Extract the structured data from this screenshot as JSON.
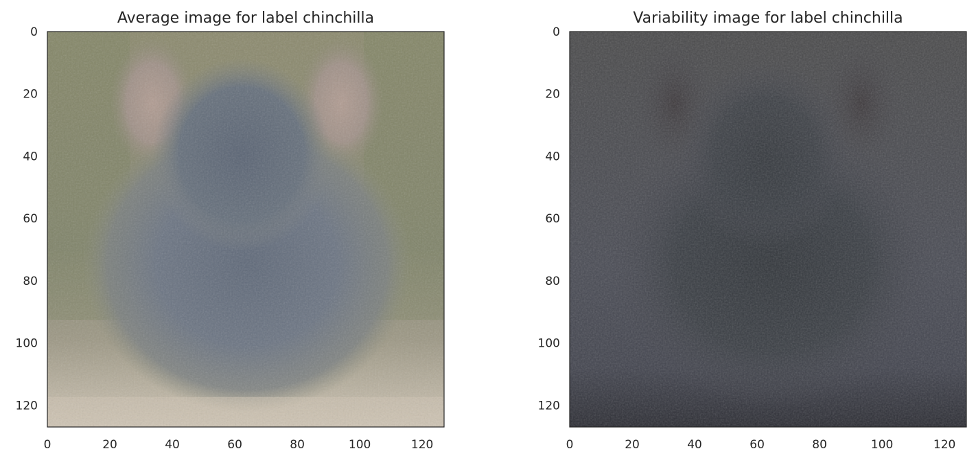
{
  "chart_data": [
    {
      "type": "heatmap",
      "title": "Average image for label chinchilla",
      "xlim": [
        0,
        127
      ],
      "ylim": [
        127,
        0
      ],
      "x_ticks": [
        0,
        20,
        40,
        60,
        80,
        100,
        120
      ],
      "y_ticks": [
        0,
        20,
        40,
        60,
        80,
        100,
        120
      ],
      "image_description_colors": {
        "background_top": "#8b8a6c",
        "background_sides": "#7d8265",
        "body": "#6d7682",
        "body_dark": "#566070",
        "ears": "#a59488",
        "floor": "#c4b9aa"
      }
    },
    {
      "type": "heatmap",
      "title": "Variability image for label chinchilla",
      "xlim": [
        0,
        127
      ],
      "ylim": [
        127,
        0
      ],
      "x_ticks": [
        0,
        20,
        40,
        60,
        80,
        100,
        120
      ],
      "y_ticks": [
        0,
        20,
        40,
        60,
        80,
        100,
        120
      ],
      "image_description_colors": {
        "background_top": "#4b4b4c",
        "background_sides": "#4c4d55",
        "body": "#3e4248",
        "body_dark": "#33373c",
        "ears": "#4b4447",
        "floor": "#2f3038"
      }
    }
  ]
}
